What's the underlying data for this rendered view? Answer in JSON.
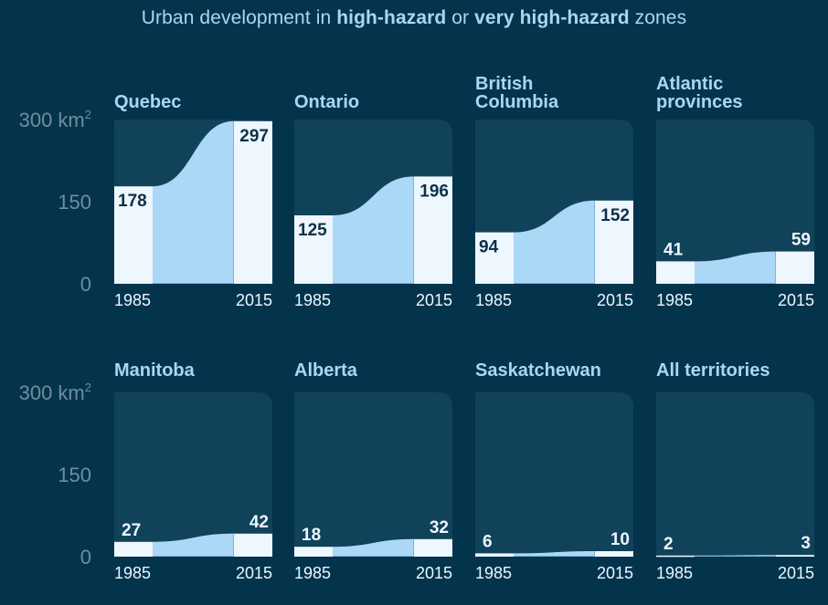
{
  "title": {
    "parts": [
      {
        "text": "Urban development in ",
        "bold": false
      },
      {
        "text": "high-hazard",
        "bold": true
      },
      {
        "text": " or ",
        "bold": false
      },
      {
        "text": "very high-hazard",
        "bold": true
      },
      {
        "text": " zones",
        "bold": false
      }
    ]
  },
  "colors": {
    "background": "#03344c",
    "panel": "#10425a",
    "bar": "#eef6fe",
    "area": "#acd8f8",
    "area_edge": "#7fb2d6",
    "title": "#a9d6f5",
    "axis": "#6f8e9c",
    "value_dark": "#0c3049"
  },
  "chart_data": {
    "type": "bar",
    "title": "Urban development in high-hazard or very high-hazard zones",
    "ylabel": "",
    "yunit": "km²",
    "ylim": [
      0,
      300
    ],
    "yticks": [
      {
        "value": 300,
        "label": "300 km",
        "sup": "2"
      },
      {
        "value": 150,
        "label": "150",
        "sup": ""
      },
      {
        "value": 0,
        "label": "0",
        "sup": ""
      }
    ],
    "categories": [
      "1985",
      "2015"
    ],
    "series": [
      {
        "name": "Quebec",
        "title_lines": [
          "Quebec"
        ],
        "values": [
          178,
          297
        ]
      },
      {
        "name": "Ontario",
        "title_lines": [
          "Ontario"
        ],
        "values": [
          125,
          196
        ]
      },
      {
        "name": "British Columbia",
        "title_lines": [
          "British",
          "Columbia"
        ],
        "values": [
          94,
          152
        ]
      },
      {
        "name": "Atlantic provinces",
        "title_lines": [
          "Atlantic",
          "provinces"
        ],
        "values": [
          41,
          59
        ]
      },
      {
        "name": "Manitoba",
        "title_lines": [
          "Manitoba"
        ],
        "values": [
          27,
          42
        ]
      },
      {
        "name": "Alberta",
        "title_lines": [
          "Alberta"
        ],
        "values": [
          18,
          32
        ]
      },
      {
        "name": "Saskatchewan",
        "title_lines": [
          "Saskatchewan"
        ],
        "values": [
          6,
          10
        ]
      },
      {
        "name": "All territories",
        "title_lines": [
          "All territories"
        ],
        "values": [
          2,
          3
        ]
      }
    ]
  }
}
